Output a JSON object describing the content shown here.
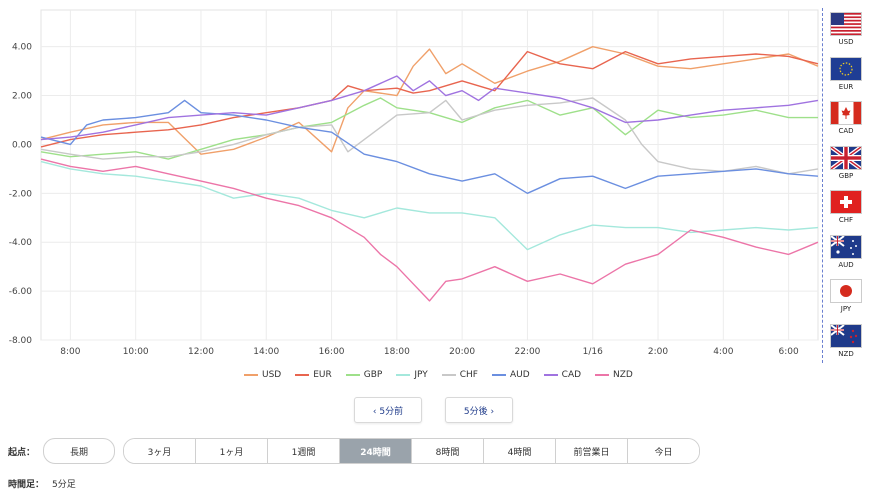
{
  "chart_data": {
    "type": "line",
    "y_ticks": [
      "4.00",
      "2.00",
      "0.00",
      "-2.00",
      "-4.00",
      "-6.00",
      "-8.00"
    ],
    "ylim": [
      -8,
      5.5
    ],
    "x_ticks": [
      "8:00",
      "10:00",
      "12:00",
      "14:00",
      "16:00",
      "18:00",
      "20:00",
      "22:00",
      "1/16",
      "2:00",
      "4:00",
      "6:00"
    ],
    "x_tick_hours": [
      8,
      10,
      12,
      14,
      16,
      18,
      20,
      22,
      24,
      26,
      28,
      30
    ],
    "xlim": [
      7.1,
      30.9
    ],
    "grid": true,
    "series": [
      {
        "name": "USD",
        "color": "#f0a06a",
        "x": [
          7.1,
          8,
          9,
          10,
          11,
          12,
          13,
          14,
          15,
          16,
          16.5,
          17,
          18,
          18.5,
          19,
          19.5,
          20,
          20.5,
          21,
          22,
          23,
          24,
          25,
          26,
          27,
          28,
          29,
          30,
          30.9
        ],
        "y": [
          0.2,
          0.5,
          0.8,
          0.9,
          0.9,
          -0.4,
          -0.2,
          0.3,
          0.9,
          -0.3,
          1.5,
          2.2,
          2.0,
          3.2,
          3.9,
          2.9,
          3.3,
          2.9,
          2.5,
          3.0,
          3.4,
          4.0,
          3.7,
          3.2,
          3.1,
          3.3,
          3.5,
          3.7,
          3.2
        ]
      },
      {
        "name": "EUR",
        "color": "#e8654f",
        "x": [
          7.1,
          8,
          9,
          10,
          11,
          12,
          13,
          14,
          15,
          16,
          16.5,
          17,
          18,
          18.5,
          19,
          20,
          21,
          22,
          23,
          24,
          25,
          26,
          27,
          28,
          29,
          30,
          30.9
        ],
        "y": [
          -0.1,
          0.2,
          0.4,
          0.5,
          0.6,
          0.8,
          1.1,
          1.3,
          1.5,
          1.8,
          2.4,
          2.2,
          2.3,
          2.1,
          2.2,
          2.6,
          2.2,
          3.8,
          3.3,
          3.1,
          3.8,
          3.3,
          3.5,
          3.6,
          3.7,
          3.6,
          3.3
        ]
      },
      {
        "name": "GBP",
        "color": "#9ee08a",
        "x": [
          7.1,
          8,
          9,
          10,
          11,
          12,
          13,
          14,
          15,
          16,
          17,
          17.5,
          18,
          19,
          20,
          21,
          22,
          23,
          24,
          25,
          26,
          27,
          28,
          29,
          30,
          30.9
        ],
        "y": [
          -0.3,
          -0.5,
          -0.4,
          -0.3,
          -0.6,
          -0.2,
          0.2,
          0.4,
          0.7,
          0.9,
          1.6,
          1.9,
          1.5,
          1.3,
          0.9,
          1.5,
          1.8,
          1.2,
          1.5,
          0.4,
          1.4,
          1.1,
          1.2,
          1.4,
          1.1,
          1.1
        ]
      },
      {
        "name": "JPY",
        "color": "#a4e8dc",
        "x": [
          7.1,
          8,
          9,
          10,
          11,
          12,
          13,
          14,
          15,
          16,
          17,
          18,
          19,
          20,
          21,
          22,
          23,
          24,
          25,
          26,
          27,
          28,
          29,
          30,
          30.9
        ],
        "y": [
          -0.7,
          -1.0,
          -1.2,
          -1.3,
          -1.5,
          -1.7,
          -2.2,
          -2.0,
          -2.2,
          -2.7,
          -3.0,
          -2.6,
          -2.8,
          -2.8,
          -3.0,
          -4.3,
          -3.7,
          -3.3,
          -3.4,
          -3.4,
          -3.6,
          -3.5,
          -3.4,
          -3.5,
          -3.4
        ]
      },
      {
        "name": "CHF",
        "color": "#c8c8c8",
        "x": [
          7.1,
          8,
          9,
          10,
          11,
          12,
          13,
          14,
          15,
          16,
          16.5,
          17,
          18,
          19,
          19.5,
          20,
          21,
          22,
          23,
          24,
          25,
          25.5,
          26,
          27,
          28,
          29,
          30,
          30.9
        ],
        "y": [
          -0.2,
          -0.4,
          -0.6,
          -0.5,
          -0.5,
          -0.3,
          0.0,
          0.4,
          0.7,
          0.8,
          -0.3,
          0.2,
          1.2,
          1.3,
          1.8,
          1.0,
          1.4,
          1.6,
          1.7,
          1.9,
          1.0,
          0.0,
          -0.7,
          -1.0,
          -1.1,
          -0.9,
          -1.2,
          -1.0
        ]
      },
      {
        "name": "AUD",
        "color": "#6b8fe0",
        "x": [
          7.1,
          8,
          8.5,
          9,
          10,
          11,
          11.5,
          12,
          13,
          14,
          15,
          16,
          17,
          18,
          19,
          20,
          21,
          22,
          23,
          24,
          25,
          26,
          27,
          28,
          29,
          30,
          30.9
        ],
        "y": [
          0.3,
          0.0,
          0.8,
          1.0,
          1.1,
          1.3,
          1.8,
          1.3,
          1.2,
          1.0,
          0.7,
          0.5,
          -0.4,
          -0.7,
          -1.2,
          -1.5,
          -1.2,
          -2.0,
          -1.4,
          -1.3,
          -1.8,
          -1.3,
          -1.2,
          -1.1,
          -1.0,
          -1.2,
          -1.3
        ]
      },
      {
        "name": "CAD",
        "color": "#a073e0",
        "x": [
          7.1,
          8,
          9,
          10,
          11,
          12,
          13,
          14,
          15,
          16,
          17,
          18,
          18.5,
          19,
          19.5,
          20,
          20.5,
          21,
          22,
          23,
          24,
          25,
          26,
          27,
          28,
          29,
          30,
          30.9
        ],
        "y": [
          0.2,
          0.3,
          0.5,
          0.8,
          1.1,
          1.2,
          1.3,
          1.2,
          1.5,
          1.8,
          2.2,
          2.8,
          2.2,
          2.6,
          2.0,
          2.2,
          1.8,
          2.3,
          2.1,
          1.9,
          1.5,
          0.9,
          1.0,
          1.2,
          1.4,
          1.5,
          1.6,
          1.8
        ]
      },
      {
        "name": "NZD",
        "color": "#ec75a8",
        "x": [
          7.1,
          8,
          9,
          10,
          11,
          12,
          13,
          14,
          15,
          16,
          17,
          17.5,
          18,
          18.5,
          19,
          19.5,
          20,
          21,
          22,
          23,
          24,
          25,
          26,
          27,
          28,
          29,
          30,
          30.9
        ],
        "y": [
          -0.6,
          -0.9,
          -1.1,
          -0.9,
          -1.2,
          -1.5,
          -1.8,
          -2.2,
          -2.5,
          -3.0,
          -3.8,
          -4.5,
          -5.0,
          -5.7,
          -6.4,
          -5.6,
          -5.5,
          -5.0,
          -5.6,
          -5.3,
          -5.7,
          -4.9,
          -4.5,
          -3.5,
          -3.8,
          -4.2,
          -4.5,
          -4.0
        ]
      }
    ]
  },
  "flags": [
    {
      "code": "USD",
      "icon": "us-flag"
    },
    {
      "code": "EUR",
      "icon": "eu-flag"
    },
    {
      "code": "CAD",
      "icon": "ca-flag"
    },
    {
      "code": "GBP",
      "icon": "gb-flag"
    },
    {
      "code": "CHF",
      "icon": "ch-flag"
    },
    {
      "code": "AUD",
      "icon": "au-flag"
    },
    {
      "code": "JPY",
      "icon": "jp-flag"
    },
    {
      "code": "NZD",
      "icon": "nz-flag"
    }
  ],
  "nav": {
    "prev": "‹ 5分前",
    "next": "5分後 ›"
  },
  "period": {
    "label": "起点：",
    "long": "長期",
    "options": [
      "3ヶ月",
      "1ヶ月",
      "1週間",
      "24時間",
      "8時間",
      "4時間",
      "前営業日",
      "今日"
    ],
    "active": "24時間"
  },
  "timeframe": {
    "label": "時間足：",
    "value": "5分足"
  }
}
